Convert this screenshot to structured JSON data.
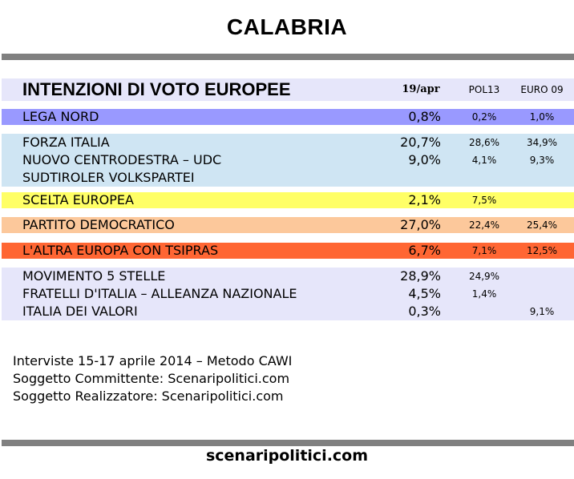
{
  "title": "CALABRIA",
  "table": {
    "header": {
      "title": "INTENZIONI DI VOTO EUROPEE",
      "col1": "19/apr",
      "col2": "POL13",
      "col3": "EURO 09"
    },
    "groups": [
      {
        "color": "#9999ff",
        "rows": [
          {
            "name": "LEGA NORD",
            "value": "0,8%",
            "pol13": "0,2%",
            "euro09": "1,0%"
          }
        ]
      },
      {
        "color": "#cfe5f3",
        "rows": [
          {
            "name": "FORZA ITALIA",
            "value": "20,7%",
            "pol13": "28,6%",
            "euro09": "34,9%"
          },
          {
            "name": "NUOVO CENTRODESTRA – UDC",
            "value": "9,0%",
            "pol13": "4,1%",
            "euro09": "9,3%"
          },
          {
            "name": "SUDTIROLER VOLKSPARTEI",
            "value": "",
            "pol13": "",
            "euro09": ""
          }
        ]
      },
      {
        "color": "#ffff66",
        "rows": [
          {
            "name": "SCELTA EUROPEA",
            "value": "2,1%",
            "pol13": "7,5%",
            "euro09": ""
          }
        ]
      },
      {
        "color": "#fcc89b",
        "rows": [
          {
            "name": "PARTITO DEMOCRATICO",
            "value": "27,0%",
            "pol13": "22,4%",
            "euro09": "25,4%"
          }
        ]
      },
      {
        "color": "#ff6633",
        "rows": [
          {
            "name": "L'ALTRA EUROPA CON TSIPRAS",
            "value": "6,7%",
            "pol13": "7,1%",
            "euro09": "12,5%"
          }
        ]
      },
      {
        "color": "#e6e6fa",
        "rows": [
          {
            "name": "MOVIMENTO 5 STELLE",
            "value": "28,9%",
            "pol13": "24,9%",
            "euro09": ""
          },
          {
            "name": "FRATELLI D'ITALIA – ALLEANZA NAZIONALE",
            "value": "4,5%",
            "pol13": "1,4%",
            "euro09": ""
          },
          {
            "name": "ITALIA DEI VALORI",
            "value": "0,3%",
            "pol13": "",
            "euro09": "9,1%"
          }
        ]
      }
    ]
  },
  "footer": {
    "line1": "Interviste 15-17 aprile 2014 – Metodo CAWI",
    "line2": "Soggetto Committente: Scenaripolitici.com",
    "line3": "Soggetto Realizzatore: Scenaripolitici.com"
  },
  "site": "scenaripolitici.com"
}
